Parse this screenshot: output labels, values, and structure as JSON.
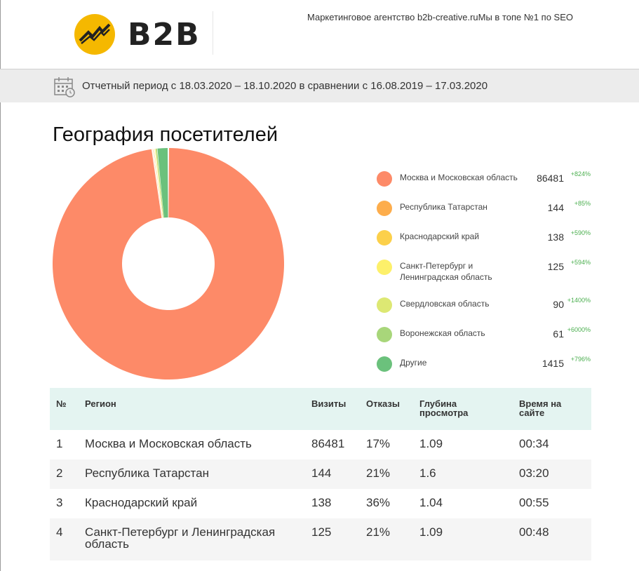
{
  "header": {
    "logo_text": "B2B",
    "tagline": "Маркетинговое агентство b2b-creative.ruМы в топе №1 по SEO"
  },
  "period": {
    "text": "Отчетный период с 18.03.2020 – 18.10.2020 в сравнении с 16.08.2019 – 17.03.2020"
  },
  "page_title": "География посетителей",
  "legend": [
    {
      "name": "Москва и Московская область",
      "value": "86481",
      "delta": "+824%",
      "color": "#fd8a68"
    },
    {
      "name": "Республика Татарстан",
      "value": "144",
      "delta": "+85%",
      "color": "#fdad4c"
    },
    {
      "name": "Краснодарский край",
      "value": "138",
      "delta": "+590%",
      "color": "#fcd04a"
    },
    {
      "name": "Санкт-Петербург и Ленинградская область",
      "value": "125",
      "delta": "+594%",
      "color": "#fdf06a"
    },
    {
      "name": "Свердловская область",
      "value": "90",
      "delta": "+1400%",
      "color": "#dde873"
    },
    {
      "name": "Воронежская область",
      "value": "61",
      "delta": "+6000%",
      "color": "#a8d67a"
    },
    {
      "name": "Другие",
      "value": "1415",
      "delta": "+796%",
      "color": "#6bc17c"
    }
  ],
  "chart_data": {
    "type": "pie",
    "categories": [
      "Москва и Московская область",
      "Республика Татарстан",
      "Краснодарский край",
      "Санкт-Петербург и Ленинградская область",
      "Свердловская область",
      "Воронежская область",
      "Другие"
    ],
    "values": [
      86481,
      144,
      138,
      125,
      90,
      61,
      1415
    ],
    "colors": [
      "#fd8a68",
      "#fdad4c",
      "#fcd04a",
      "#fdf06a",
      "#dde873",
      "#a8d67a",
      "#6bc17c"
    ],
    "donut": true,
    "legend": "right"
  },
  "table": {
    "headers": {
      "num": "№",
      "region": "Регион",
      "visits": "Визиты",
      "bounces": "Отказы",
      "depth_1": "Глубина",
      "depth_2": "просмотра",
      "time_1": "Время на",
      "time_2": "сайте"
    },
    "rows": [
      {
        "num": "1",
        "region": "Москва и Московская область",
        "region_2": "",
        "visits": "86481",
        "bounces": "17%",
        "depth": "1.09",
        "time": "00:34"
      },
      {
        "num": "2",
        "region": "Республика Татарстан",
        "region_2": "",
        "visits": "144",
        "bounces": "21%",
        "depth": "1.6",
        "time": "03:20"
      },
      {
        "num": "3",
        "region": "Краснодарский край",
        "region_2": "",
        "visits": "138",
        "bounces": "36%",
        "depth": "1.04",
        "time": "00:55"
      },
      {
        "num": "4",
        "region": "Санкт-Петербург и Ленинградская",
        "region_2": "область",
        "visits": "125",
        "bounces": "21%",
        "depth": "1.09",
        "time": "00:48"
      }
    ]
  }
}
